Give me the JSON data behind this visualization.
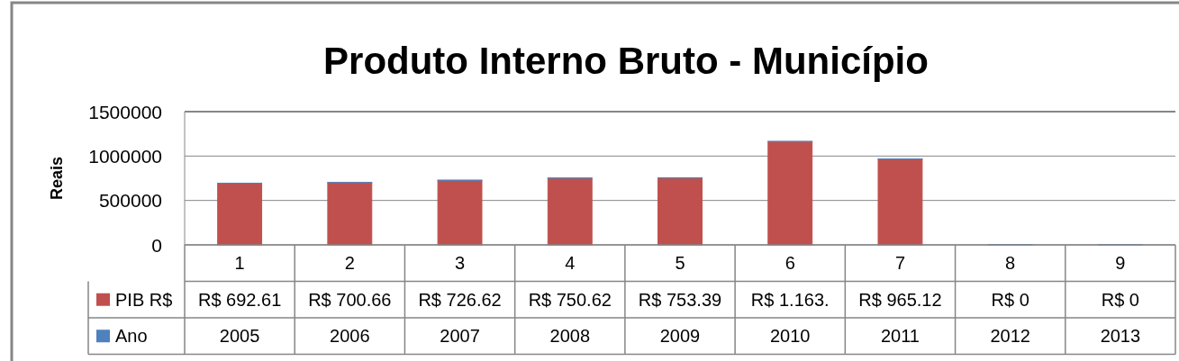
{
  "chart_data": {
    "type": "bar",
    "title": "Produto Interno Bruto - Município",
    "ylabel": "Reais",
    "categories": [
      "1",
      "2",
      "3",
      "4",
      "5",
      "6",
      "7",
      "8",
      "9"
    ],
    "stacked": true,
    "series": [
      {
        "name": "PIB R$",
        "color": "#c0504d",
        "values": [
          692610,
          700660,
          726620,
          750620,
          753390,
          1163000,
          965120,
          0,
          0
        ],
        "value_labels": [
          "R$ 692.61",
          "R$ 700.66",
          "R$ 726.62",
          "R$ 750.62",
          "R$ 753.39",
          "R$ 1.163.",
          "R$ 965.12",
          "R$ 0",
          "R$ 0"
        ]
      },
      {
        "name": "Ano",
        "color": "#4f81bd",
        "values": [
          2005,
          2006,
          2007,
          2008,
          2009,
          2010,
          2011,
          2012,
          2013
        ],
        "value_labels": [
          "2005",
          "2006",
          "2007",
          "2008",
          "2009",
          "2010",
          "2011",
          "2012",
          "2013"
        ]
      }
    ],
    "ylim": [
      0,
      1500000
    ],
    "yticks": [
      0,
      500000,
      1000000,
      1500000
    ],
    "grid": "y",
    "legend": "bottom left"
  }
}
